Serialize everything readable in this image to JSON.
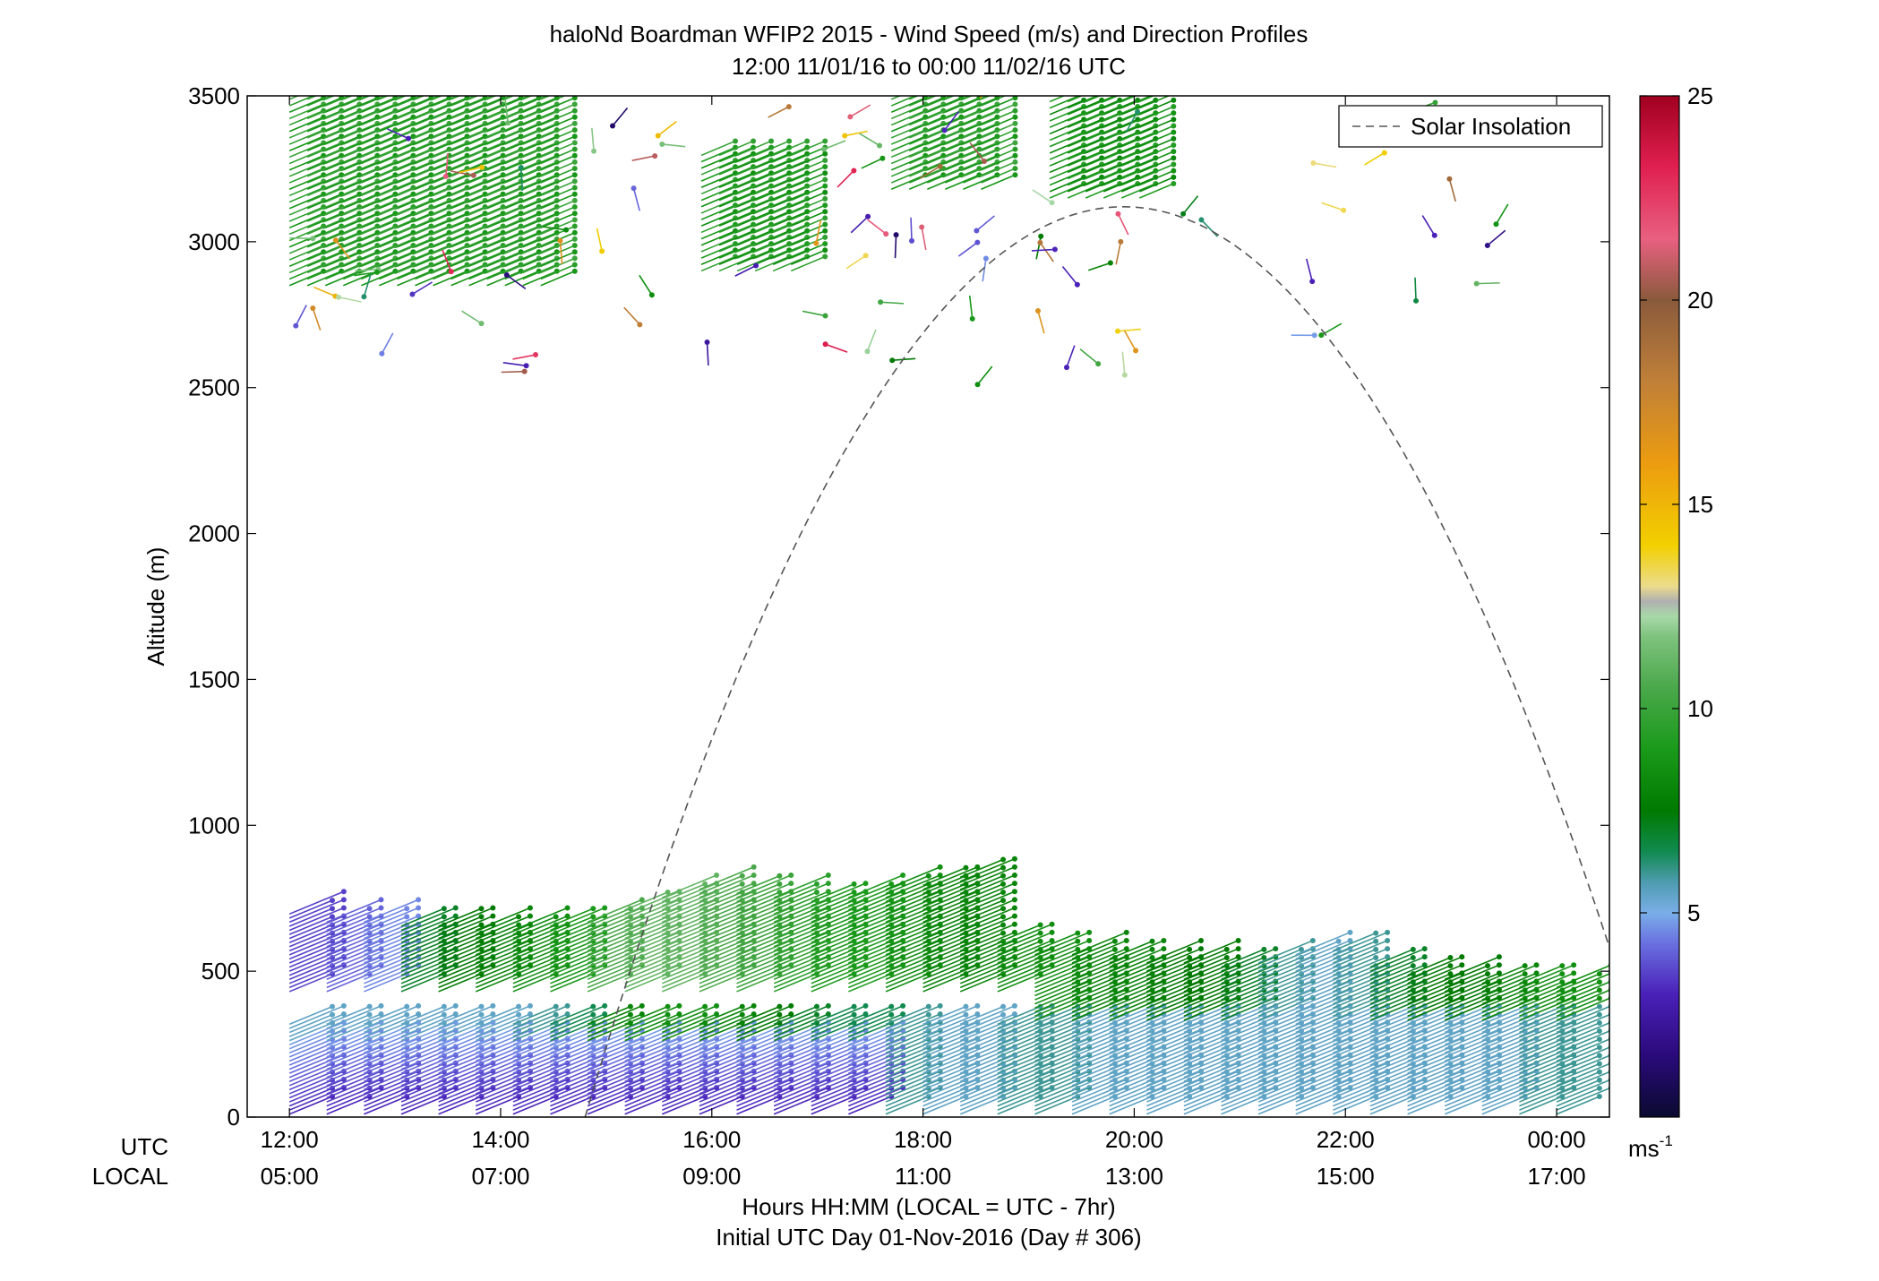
{
  "chart_data": {
    "type": "wind-barb-profile",
    "title": "haloNd Boardman WFIP2 2015 - Wind Speed (m/s) and Direction Profiles",
    "subtitle": "12:00 11/01/16 to 00:00 11/02/16  UTC",
    "ylabel": "Altitude (m)",
    "xlabel": "Hours HH:MM  (LOCAL = UTC - 7hr)",
    "xlabel2": "Initial UTC Day 01-Nov-2016 (Day # 306)",
    "row_label_utc": "UTC",
    "row_label_local": "LOCAL",
    "xlim_hours_utc": [
      11.6,
      24.5
    ],
    "ylim": [
      0,
      3500
    ],
    "y_ticks": [
      "0",
      "500",
      "1000",
      "1500",
      "2000",
      "2500",
      "3000",
      "3500"
    ],
    "x_ticks": [
      {
        "hour": 12,
        "utc": "12:00",
        "local": "05:00"
      },
      {
        "hour": 14,
        "utc": "14:00",
        "local": "07:00"
      },
      {
        "hour": 16,
        "utc": "16:00",
        "local": "09:00"
      },
      {
        "hour": 18,
        "utc": "18:00",
        "local": "11:00"
      },
      {
        "hour": 20,
        "utc": "20:00",
        "local": "13:00"
      },
      {
        "hour": 22,
        "utc": "22:00",
        "local": "15:00"
      },
      {
        "hour": 24,
        "utc": "00:00",
        "local": "17:00"
      }
    ],
    "legend": {
      "entries": [
        "Solar Insolation"
      ],
      "placement": "top-right",
      "style": "dashed"
    },
    "colorbar": {
      "ticks": [
        "5",
        "10",
        "15",
        "20",
        "25"
      ],
      "range": [
        0,
        25
      ],
      "unit_label": "ms",
      "unit_exp": "-1"
    },
    "solar_insolation": {
      "peak_hour_utc": 19.9,
      "peak_altitude": 3120,
      "zero_hours_utc": [
        14.8,
        25.0
      ]
    },
    "profiles": {
      "time_step_hours": 0.17,
      "lower_layer": {
        "hours_utc": [
          12.0,
          24.0
        ],
        "top_altitude": [
          700,
          680,
          670,
          660,
          655,
          650,
          650,
          660,
          680,
          720,
          760,
          780,
          770,
          760,
          750,
          760,
          780,
          800,
          830,
          600,
          580,
          560,
          550,
          540,
          530,
          520,
          540,
          560,
          570,
          520,
          490,
          480,
          470,
          460,
          450
        ],
        "speed_ms": [
          3.5,
          4.0,
          4.5,
          7.0,
          7.5,
          8.0,
          8.5,
          9.0,
          10.5,
          11.0,
          11.0,
          10.5,
          10.0,
          9.5,
          9.0,
          9.0,
          8.5,
          8.0,
          8.0,
          8.5,
          8.5,
          8.0,
          8.0,
          7.5,
          7.5,
          7.0,
          6.0,
          5.5,
          6.0,
          7.0,
          7.5,
          7.5,
          8.0,
          8.5,
          8.5
        ]
      },
      "upper_layer": {
        "segments": [
          {
            "hours_utc": [
              12.0,
              14.4
            ],
            "base": 2850,
            "top": 3500,
            "speed_ms": 8.5
          },
          {
            "hours_utc": [
              15.9,
              16.9
            ],
            "base": 2900,
            "top": 3300,
            "speed_ms": 8.0
          },
          {
            "hours_utc": [
              17.7,
              18.6
            ],
            "base": 3180,
            "top": 3500,
            "speed_ms": 8.5
          },
          {
            "hours_utc": [
              19.2,
              20.1
            ],
            "base": 3150,
            "top": 3480,
            "speed_ms": 8.0
          }
        ]
      }
    }
  }
}
